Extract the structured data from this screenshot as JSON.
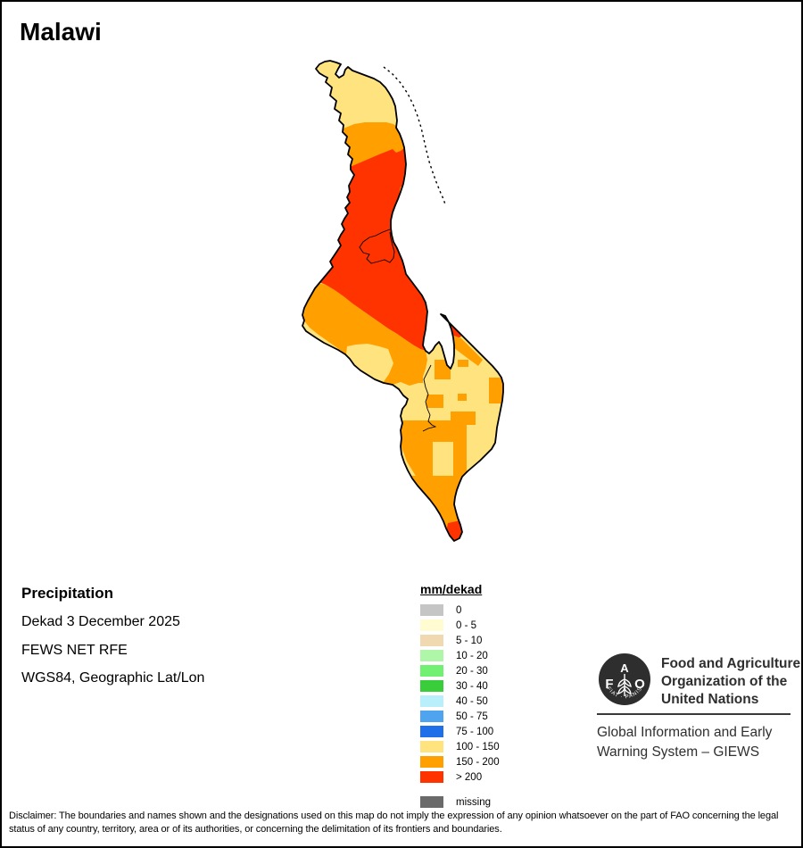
{
  "title": "Malawi",
  "info": {
    "heading": "Precipitation",
    "lines": [
      "Dekad 3 December 2025",
      "FEWS NET RFE",
      "WGS84, Geographic Lat/Lon"
    ]
  },
  "legend": {
    "title": "mm/dekad",
    "items": [
      {
        "label": "0",
        "color": "#c5c5c5"
      },
      {
        "label": "0 - 5",
        "color": "#fffcd2"
      },
      {
        "label": "5 - 10",
        "color": "#f0d9b0"
      },
      {
        "label": "10 - 20",
        "color": "#b0f6a8"
      },
      {
        "label": "20 - 30",
        "color": "#72f072"
      },
      {
        "label": "30 - 40",
        "color": "#3acd3b"
      },
      {
        "label": "40 - 50",
        "color": "#b8effa"
      },
      {
        "label": "50 - 75",
        "color": "#4fa4f0"
      },
      {
        "label": "75 - 100",
        "color": "#1f6fe8"
      },
      {
        "label": "100 - 150",
        "color": "#ffe37e"
      },
      {
        "label": "150 - 200",
        "color": "#ffa000"
      },
      {
        "label": "> 200",
        "color": "#ff3300"
      }
    ],
    "missing": {
      "label": "missing",
      "color": "#6a6a6a"
    }
  },
  "map_colors": {
    "yellow": "#ffe37e",
    "orange": "#ffa000",
    "red": "#ff3300",
    "outline": "#000000"
  },
  "org": {
    "logo_text_a": "A",
    "logo_text_f": "F",
    "logo_text_o": "O",
    "logo_motto": "FIAT · PANIS",
    "name_lines": [
      "Food and Agriculture",
      "Organization of the",
      "United Nations"
    ],
    "system_lines": [
      "Global Information and Early",
      "Warning System – GIEWS"
    ]
  },
  "disclaimer": "Disclaimer: The boundaries and names shown and the designations used on this map do not imply the expression of any opinion whatsoever on the part of FAO concerning the legal status of any country, territory, area or of its authorities, or concerning the delimitation of its frontiers and boundaries."
}
